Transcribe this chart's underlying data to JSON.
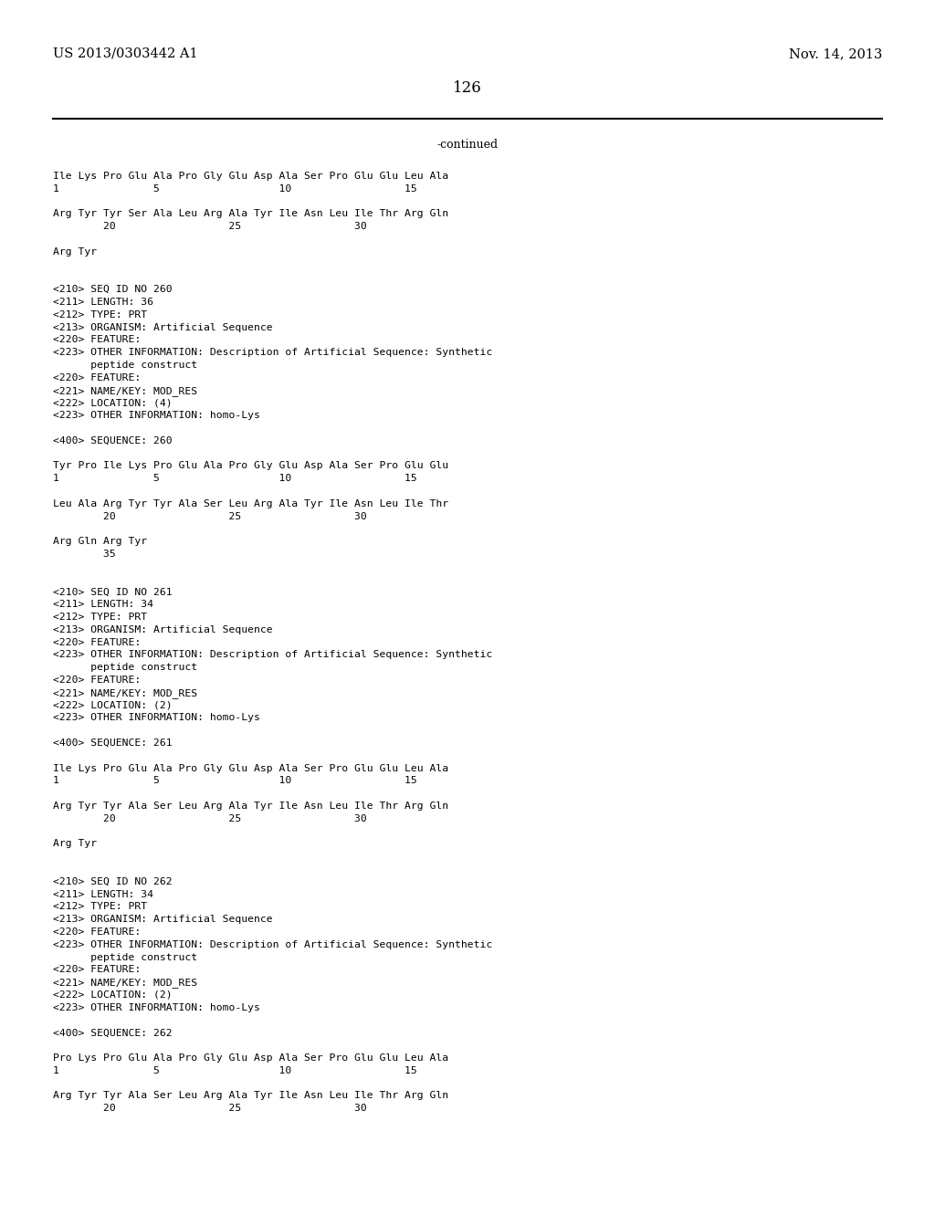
{
  "header_left": "US 2013/0303442 A1",
  "header_right": "Nov. 14, 2013",
  "page_number": "126",
  "continued_label": "-continued",
  "background_color": "#ffffff",
  "text_color": "#000000",
  "mono_font_size": 8.2,
  "header_font_size": 10.5,
  "page_num_font_size": 12,
  "continued_font_size": 9,
  "lines": [
    "Ile Lys Pro Glu Ala Pro Gly Glu Asp Ala Ser Pro Glu Glu Leu Ala",
    "1               5                   10                  15",
    "",
    "Arg Tyr Tyr Ser Ala Leu Arg Ala Tyr Ile Asn Leu Ile Thr Arg Gln",
    "        20                  25                  30",
    "",
    "Arg Tyr",
    "",
    "",
    "<210> SEQ ID NO 260",
    "<211> LENGTH: 36",
    "<212> TYPE: PRT",
    "<213> ORGANISM: Artificial Sequence",
    "<220> FEATURE:",
    "<223> OTHER INFORMATION: Description of Artificial Sequence: Synthetic",
    "      peptide construct",
    "<220> FEATURE:",
    "<221> NAME/KEY: MOD_RES",
    "<222> LOCATION: (4)",
    "<223> OTHER INFORMATION: homo-Lys",
    "",
    "<400> SEQUENCE: 260",
    "",
    "Tyr Pro Ile Lys Pro Glu Ala Pro Gly Glu Asp Ala Ser Pro Glu Glu",
    "1               5                   10                  15",
    "",
    "Leu Ala Arg Tyr Tyr Ala Ser Leu Arg Ala Tyr Ile Asn Leu Ile Thr",
    "        20                  25                  30",
    "",
    "Arg Gln Arg Tyr",
    "        35",
    "",
    "",
    "<210> SEQ ID NO 261",
    "<211> LENGTH: 34",
    "<212> TYPE: PRT",
    "<213> ORGANISM: Artificial Sequence",
    "<220> FEATURE:",
    "<223> OTHER INFORMATION: Description of Artificial Sequence: Synthetic",
    "      peptide construct",
    "<220> FEATURE:",
    "<221> NAME/KEY: MOD_RES",
    "<222> LOCATION: (2)",
    "<223> OTHER INFORMATION: homo-Lys",
    "",
    "<400> SEQUENCE: 261",
    "",
    "Ile Lys Pro Glu Ala Pro Gly Glu Asp Ala Ser Pro Glu Glu Leu Ala",
    "1               5                   10                  15",
    "",
    "Arg Tyr Tyr Ala Ser Leu Arg Ala Tyr Ile Asn Leu Ile Thr Arg Gln",
    "        20                  25                  30",
    "",
    "Arg Tyr",
    "",
    "",
    "<210> SEQ ID NO 262",
    "<211> LENGTH: 34",
    "<212> TYPE: PRT",
    "<213> ORGANISM: Artificial Sequence",
    "<220> FEATURE:",
    "<223> OTHER INFORMATION: Description of Artificial Sequence: Synthetic",
    "      peptide construct",
    "<220> FEATURE:",
    "<221> NAME/KEY: MOD_RES",
    "<222> LOCATION: (2)",
    "<223> OTHER INFORMATION: homo-Lys",
    "",
    "<400> SEQUENCE: 262",
    "",
    "Pro Lys Pro Glu Ala Pro Gly Glu Asp Ala Ser Pro Glu Glu Leu Ala",
    "1               5                   10                  15",
    "",
    "Arg Tyr Tyr Ala Ser Leu Arg Ala Tyr Ile Asn Leu Ile Thr Arg Gln",
    "        20                  25                  30"
  ]
}
